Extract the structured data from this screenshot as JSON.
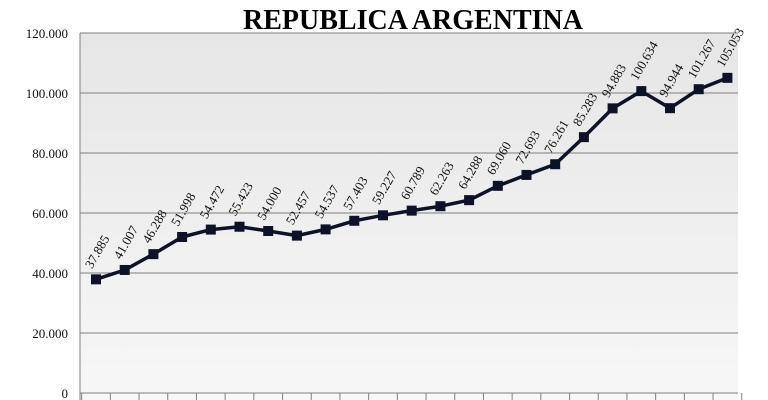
{
  "chart_data": {
    "type": "line",
    "title": "REPUBLICA ARGENTINA",
    "xlabel": "",
    "ylabel": "",
    "ylim": [
      0,
      120000
    ],
    "y_ticks": [
      "0",
      "20.000",
      "40.000",
      "60.000",
      "80.000",
      "100.000",
      "120.000"
    ],
    "grid": true,
    "legend": "none",
    "series": [
      {
        "values": [
          37885,
          41007,
          46288,
          51998,
          54472,
          55423,
          54000,
          52457,
          54537,
          57403,
          59227,
          60789,
          62263,
          64288,
          69060,
          72693,
          76261,
          85283,
          94883,
          100634,
          94944,
          101267,
          105053
        ],
        "labels": [
          "37.885",
          "41.007",
          "46.288",
          "51.998",
          "54.472",
          "55.423",
          "54.000",
          "52.457",
          "54.537",
          "57.403",
          "59.227",
          "60.789",
          "62.263",
          "64.288",
          "69.060",
          "72.693",
          "76.261",
          "85.283",
          "94.883",
          "100.634",
          "94.944",
          "101.267",
          "105.053"
        ]
      }
    ],
    "colors": {
      "line": "#0d1226",
      "plot_bg_top": "#e6e6e6",
      "plot_bg_bottom": "#f7f7f7",
      "grid": "#7f7f7f"
    }
  }
}
